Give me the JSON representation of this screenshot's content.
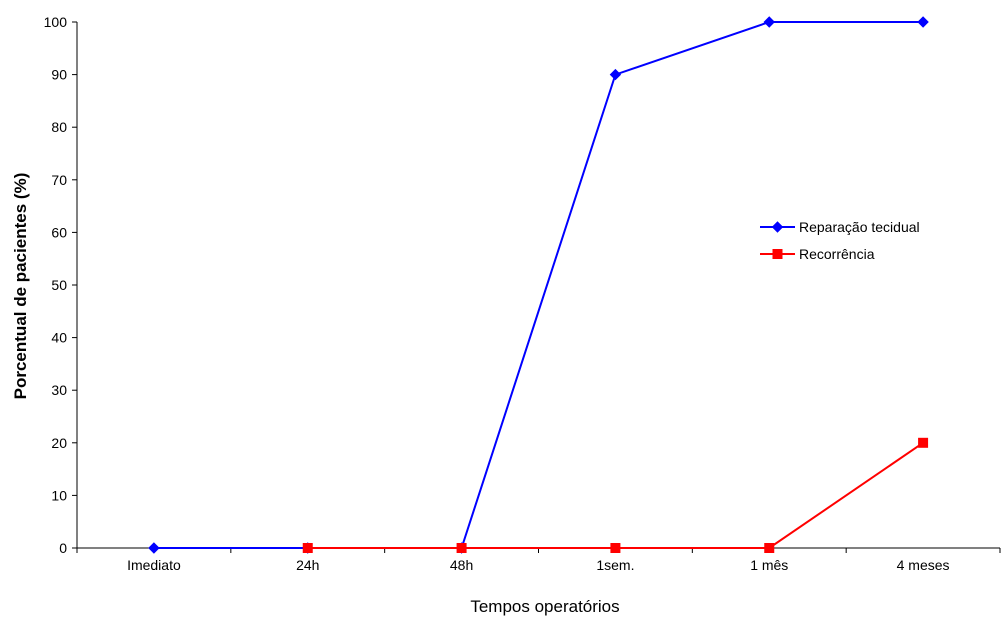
{
  "chart_data": {
    "type": "line",
    "title": "",
    "xlabel": "Tempos operatórios",
    "ylabel": "Porcentual de pacientes (%)",
    "categories": [
      "Imediato",
      "24h",
      "48h",
      "1sem.",
      "1 mês",
      "4 meses"
    ],
    "ylim": [
      0,
      100
    ],
    "yticks": [
      0,
      10,
      20,
      30,
      40,
      50,
      60,
      70,
      80,
      90,
      100
    ],
    "grid": false,
    "legend_position": "right",
    "series": [
      {
        "name": "Reparação tecidual",
        "values": [
          0,
          0,
          0,
          90,
          100,
          100
        ],
        "color": "#0000ff",
        "marker": "diamond"
      },
      {
        "name": "Recorrência",
        "values": [
          null,
          0,
          0,
          0,
          0,
          20
        ],
        "color": "#ff0000",
        "marker": "square"
      }
    ]
  }
}
